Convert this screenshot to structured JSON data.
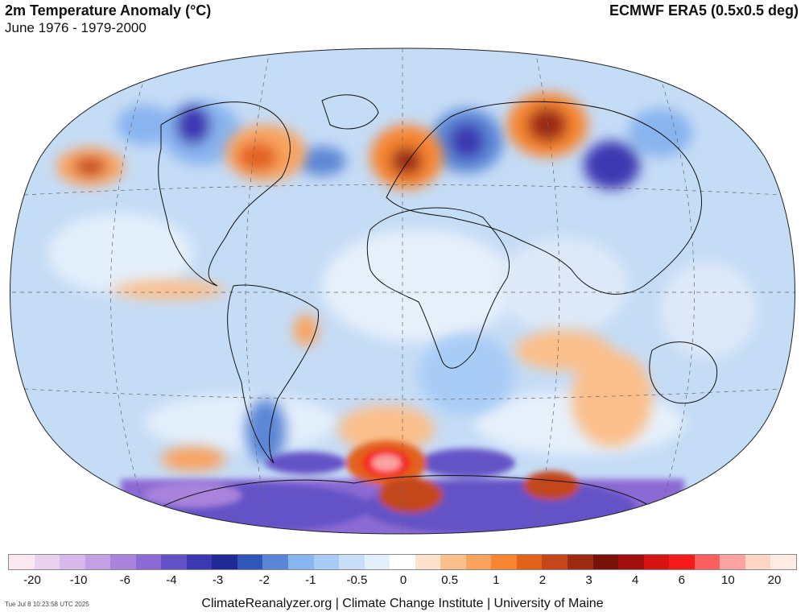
{
  "header": {
    "title": "2m Temperature Anomaly (°C)",
    "subtitle": "June 1976 - 1979-2000",
    "source": "ECMWF ERA5 (0.5x0.5 deg)"
  },
  "legend": {
    "colors": [
      "#fbe9f2",
      "#e9d2ee",
      "#d6b9ea",
      "#c2a0e4",
      "#a983dc",
      "#8b6ad3",
      "#6352c6",
      "#3c38b1",
      "#1f2a97",
      "#2f56b8",
      "#5b86d6",
      "#88b4ef",
      "#a9ccf6",
      "#c8def8",
      "#e3effb",
      "#ffffff",
      "#fde3cc",
      "#fbbf8b",
      "#f9a35e",
      "#f78532",
      "#e2621b",
      "#c4461a",
      "#9c2b12",
      "#78110a",
      "#a30f0f",
      "#d61414",
      "#f71a1a",
      "#fb5f5f",
      "#fba3a3",
      "#fdd6c6",
      "#fdebe4"
    ],
    "ticks": [
      "-20",
      "-10",
      "-6",
      "-4",
      "-3",
      "-2",
      "-1",
      "-0.5",
      "0",
      "0.5",
      "1",
      "2",
      "3",
      "4",
      "6",
      "10",
      "20"
    ]
  },
  "map": {
    "projection": "Winkel Tripel",
    "region": "Global",
    "ocean_base_color": "#c5dcf6",
    "warm_anomalies": [
      {
        "region": "Western Europe",
        "level": "strong"
      },
      {
        "region": "Eastern North America",
        "level": "moderate"
      },
      {
        "region": "Central Siberia",
        "level": "strong"
      },
      {
        "region": "North Pacific",
        "level": "moderate"
      },
      {
        "region": "Antarctic coast (Weddell Sea)",
        "level": "extreme"
      },
      {
        "region": "East Antarctica",
        "level": "strong"
      },
      {
        "region": "South Indian Ocean",
        "level": "moderate"
      }
    ],
    "cold_anomalies": [
      {
        "region": "Western Canada",
        "level": "strong"
      },
      {
        "region": "European Russia",
        "level": "strong"
      },
      {
        "region": "Eastern Siberia",
        "level": "strong"
      },
      {
        "region": "Antarctica",
        "level": "strong"
      }
    ]
  },
  "footer": {
    "timestamp": "Tue Jul  8 10:23:58 UTC 2025",
    "credits": "ClimateReanalyzer.org | Climate Change Institute | University of Maine"
  }
}
